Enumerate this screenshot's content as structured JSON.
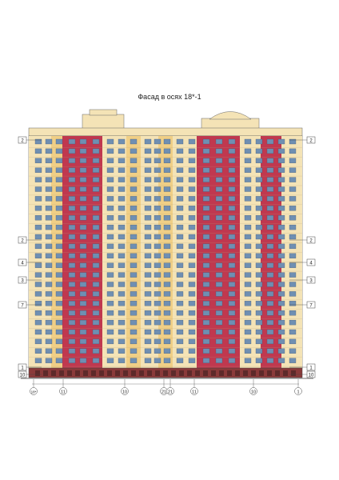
{
  "drawing": {
    "title": "Фасад в осях 18*-1"
  },
  "left_marks": [
    "2",
    "2",
    "4",
    "3",
    "7",
    "1",
    "10"
  ],
  "right_marks": [
    "2",
    "2",
    "4",
    "3",
    "7",
    "1",
    "10"
  ],
  "axis_labels": [
    "18*",
    "11",
    "10",
    "21",
    "21",
    "11",
    "10",
    "1"
  ],
  "colors": {
    "facade_red": "#c0384f",
    "facade_cream": "#f4e3b6",
    "facade_yellow": "#f0cf86",
    "window": "#6f8fb2",
    "window_dark": "#3e5573",
    "base": "#8a3a3a",
    "line": "#444444"
  }
}
